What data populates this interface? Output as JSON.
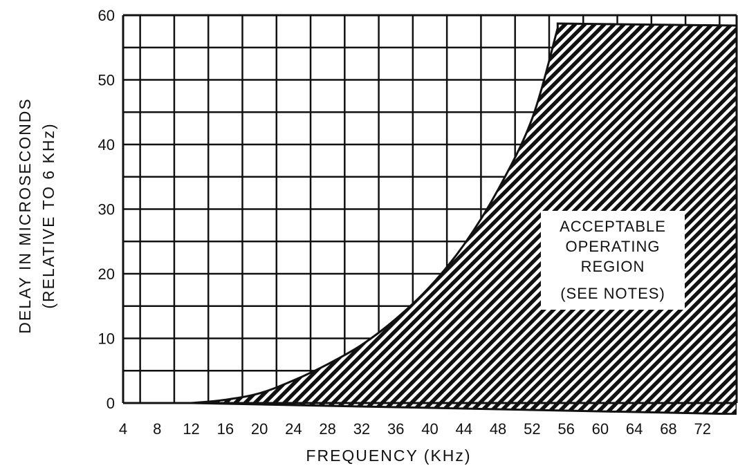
{
  "chart_data": {
    "type": "area",
    "title": "",
    "xlabel": "FREQUENCY (KHz)",
    "ylabel": [
      "DELAY IN MICROSECONDS",
      "(RELATIVE TO 6 KHz)"
    ],
    "x_ticks": [
      "4",
      "8",
      "12",
      "16",
      "20",
      "24",
      "28",
      "32",
      "36",
      "40",
      "44",
      "48",
      "52",
      "56",
      "60",
      "64",
      "68",
      "72"
    ],
    "y_ticks": [
      "0",
      "10",
      "20",
      "30",
      "40",
      "50",
      "60"
    ],
    "xlim": [
      4,
      76
    ],
    "ylim": [
      0,
      60
    ],
    "grid": true,
    "series": [
      {
        "name": "ACCEPTABLE OPERATING REGION (SEE NOTES)",
        "region_fill": "hatched",
        "boundary": [
          {
            "x": 12,
            "y": 0
          },
          {
            "x": 16,
            "y": 0.5
          },
          {
            "x": 20,
            "y": 1.5
          },
          {
            "x": 24,
            "y": 3.5
          },
          {
            "x": 28,
            "y": 6
          },
          {
            "x": 32,
            "y": 9
          },
          {
            "x": 36,
            "y": 13
          },
          {
            "x": 40,
            "y": 18
          },
          {
            "x": 44,
            "y": 24.5
          },
          {
            "x": 48,
            "y": 33
          },
          {
            "x": 52,
            "y": 44
          },
          {
            "x": 55,
            "y": 58
          }
        ]
      }
    ],
    "annotation": [
      "ACCEPTABLE",
      "OPERATING",
      "REGION",
      "(SEE NOTES)"
    ]
  }
}
